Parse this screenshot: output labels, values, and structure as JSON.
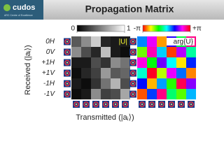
{
  "header": {
    "logo": "cudos",
    "logo_sub": "ARC Centre of Excellence",
    "title": "Propagation Matrix"
  },
  "y_axis_title": "Received (|aᵢ⟩)",
  "x_axis_title": "Transmitted (|aⱼ⟩)",
  "rows": [
    "0H",
    "0V",
    "+1H",
    "+1V",
    "-1H",
    "-1V"
  ],
  "chart_data": [
    {
      "type": "heatmap",
      "label": "|U|",
      "colormap": "gray",
      "clim": [
        0,
        1
      ],
      "cticks": [
        0,
        1
      ],
      "values": [
        [
          0.35,
          0.55,
          0.8,
          0.15,
          0.1,
          0.1
        ],
        [
          0.55,
          0.3,
          0.15,
          0.75,
          0.1,
          0.05
        ],
        [
          0.1,
          0.1,
          0.3,
          0.2,
          0.55,
          0.45
        ],
        [
          0.05,
          0.15,
          0.25,
          0.6,
          0.35,
          0.4
        ],
        [
          0.1,
          0.05,
          0.2,
          0.45,
          0.7,
          0.3
        ],
        [
          0.05,
          0.1,
          0.55,
          0.25,
          0.3,
          0.65
        ]
      ]
    },
    {
      "type": "heatmap",
      "label": "arg{U}",
      "colormap": "hue",
      "clim": [
        -3.14159,
        3.14159
      ],
      "cticks": [
        {
          "value": -3.14159,
          "label": "-π"
        },
        {
          "value": 3.14159,
          "label": "+π"
        }
      ],
      "values": [
        [
          0.5,
          2.0,
          -2.5,
          1.2,
          -0.8,
          2.6
        ],
        [
          -1.5,
          2.4,
          0.2,
          -2.9,
          1.8,
          -0.4
        ],
        [
          2.2,
          -1.0,
          1.5,
          0.0,
          -2.2,
          0.9
        ],
        [
          -0.2,
          3.0,
          -1.8,
          2.0,
          0.6,
          -2.6
        ],
        [
          1.0,
          -2.4,
          0.4,
          -1.2,
          2.8,
          1.6
        ],
        [
          -2.8,
          0.8,
          2.6,
          -0.6,
          -1.4,
          0.3
        ]
      ]
    }
  ]
}
